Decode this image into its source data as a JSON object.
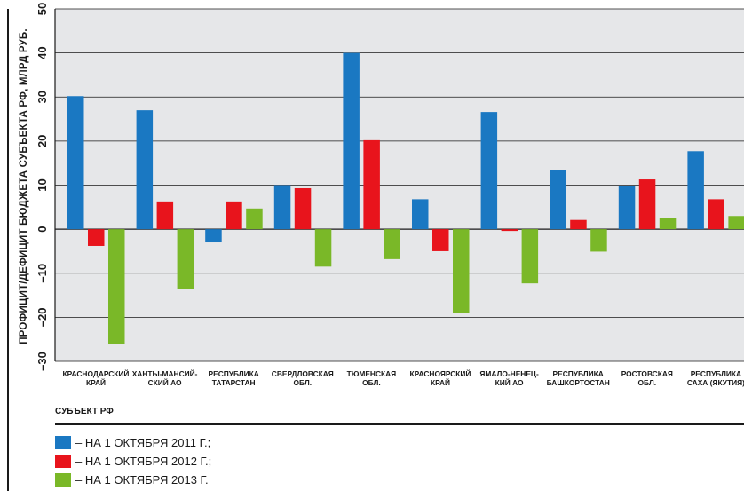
{
  "chart_data": {
    "type": "bar",
    "ylabel": "ПРОФИЦИТ/ДЕФИЦИТ БЮДЖЕТА СУБЪЕКТА РФ, МЛРД РУБ.",
    "xlabel": "СУБЪЕКТ РФ",
    "ylim": [
      -30,
      50
    ],
    "yticks": [
      "–30",
      "–20",
      "–10",
      "0",
      "10",
      "20",
      "30",
      "40",
      "50"
    ],
    "ytick_values": [
      -30,
      -20,
      -10,
      0,
      10,
      20,
      30,
      40,
      50
    ],
    "grid": true,
    "legend_position": "bottom-left",
    "categories": [
      "Краснодарский\nкрай",
      "Ханты-Мансий-\nский АО",
      "Республика\nТатарстан",
      "Свердловская\nобл.",
      "Тюменская\nобл.",
      "Красноярский\nкрай",
      "Ямало-Ненец-\nкий АО",
      "Республика\nБашкортостан",
      "Ростовская\nобл.",
      "Республика\nСаха (Якутия)"
    ],
    "series": [
      {
        "name": "– на 1 октября 2011 г.;",
        "color": "#1a78c2",
        "values": [
          30.2,
          27,
          -3,
          10,
          40,
          6.8,
          26.6,
          13.5,
          9.8,
          17.7
        ]
      },
      {
        "name": "– на 1 октября 2012 г.;",
        "color": "#e8141c",
        "values": [
          -3.8,
          6.3,
          6.3,
          9.3,
          20.2,
          -5,
          -0.4,
          2.1,
          11.3,
          6.8
        ]
      },
      {
        "name": "– на 1 октября 2013 г.",
        "color": "#7ab828",
        "values": [
          -26,
          -13.5,
          4.7,
          -8.5,
          -6.8,
          -19,
          -12.3,
          -5.1,
          2.5,
          3
        ]
      }
    ]
  }
}
